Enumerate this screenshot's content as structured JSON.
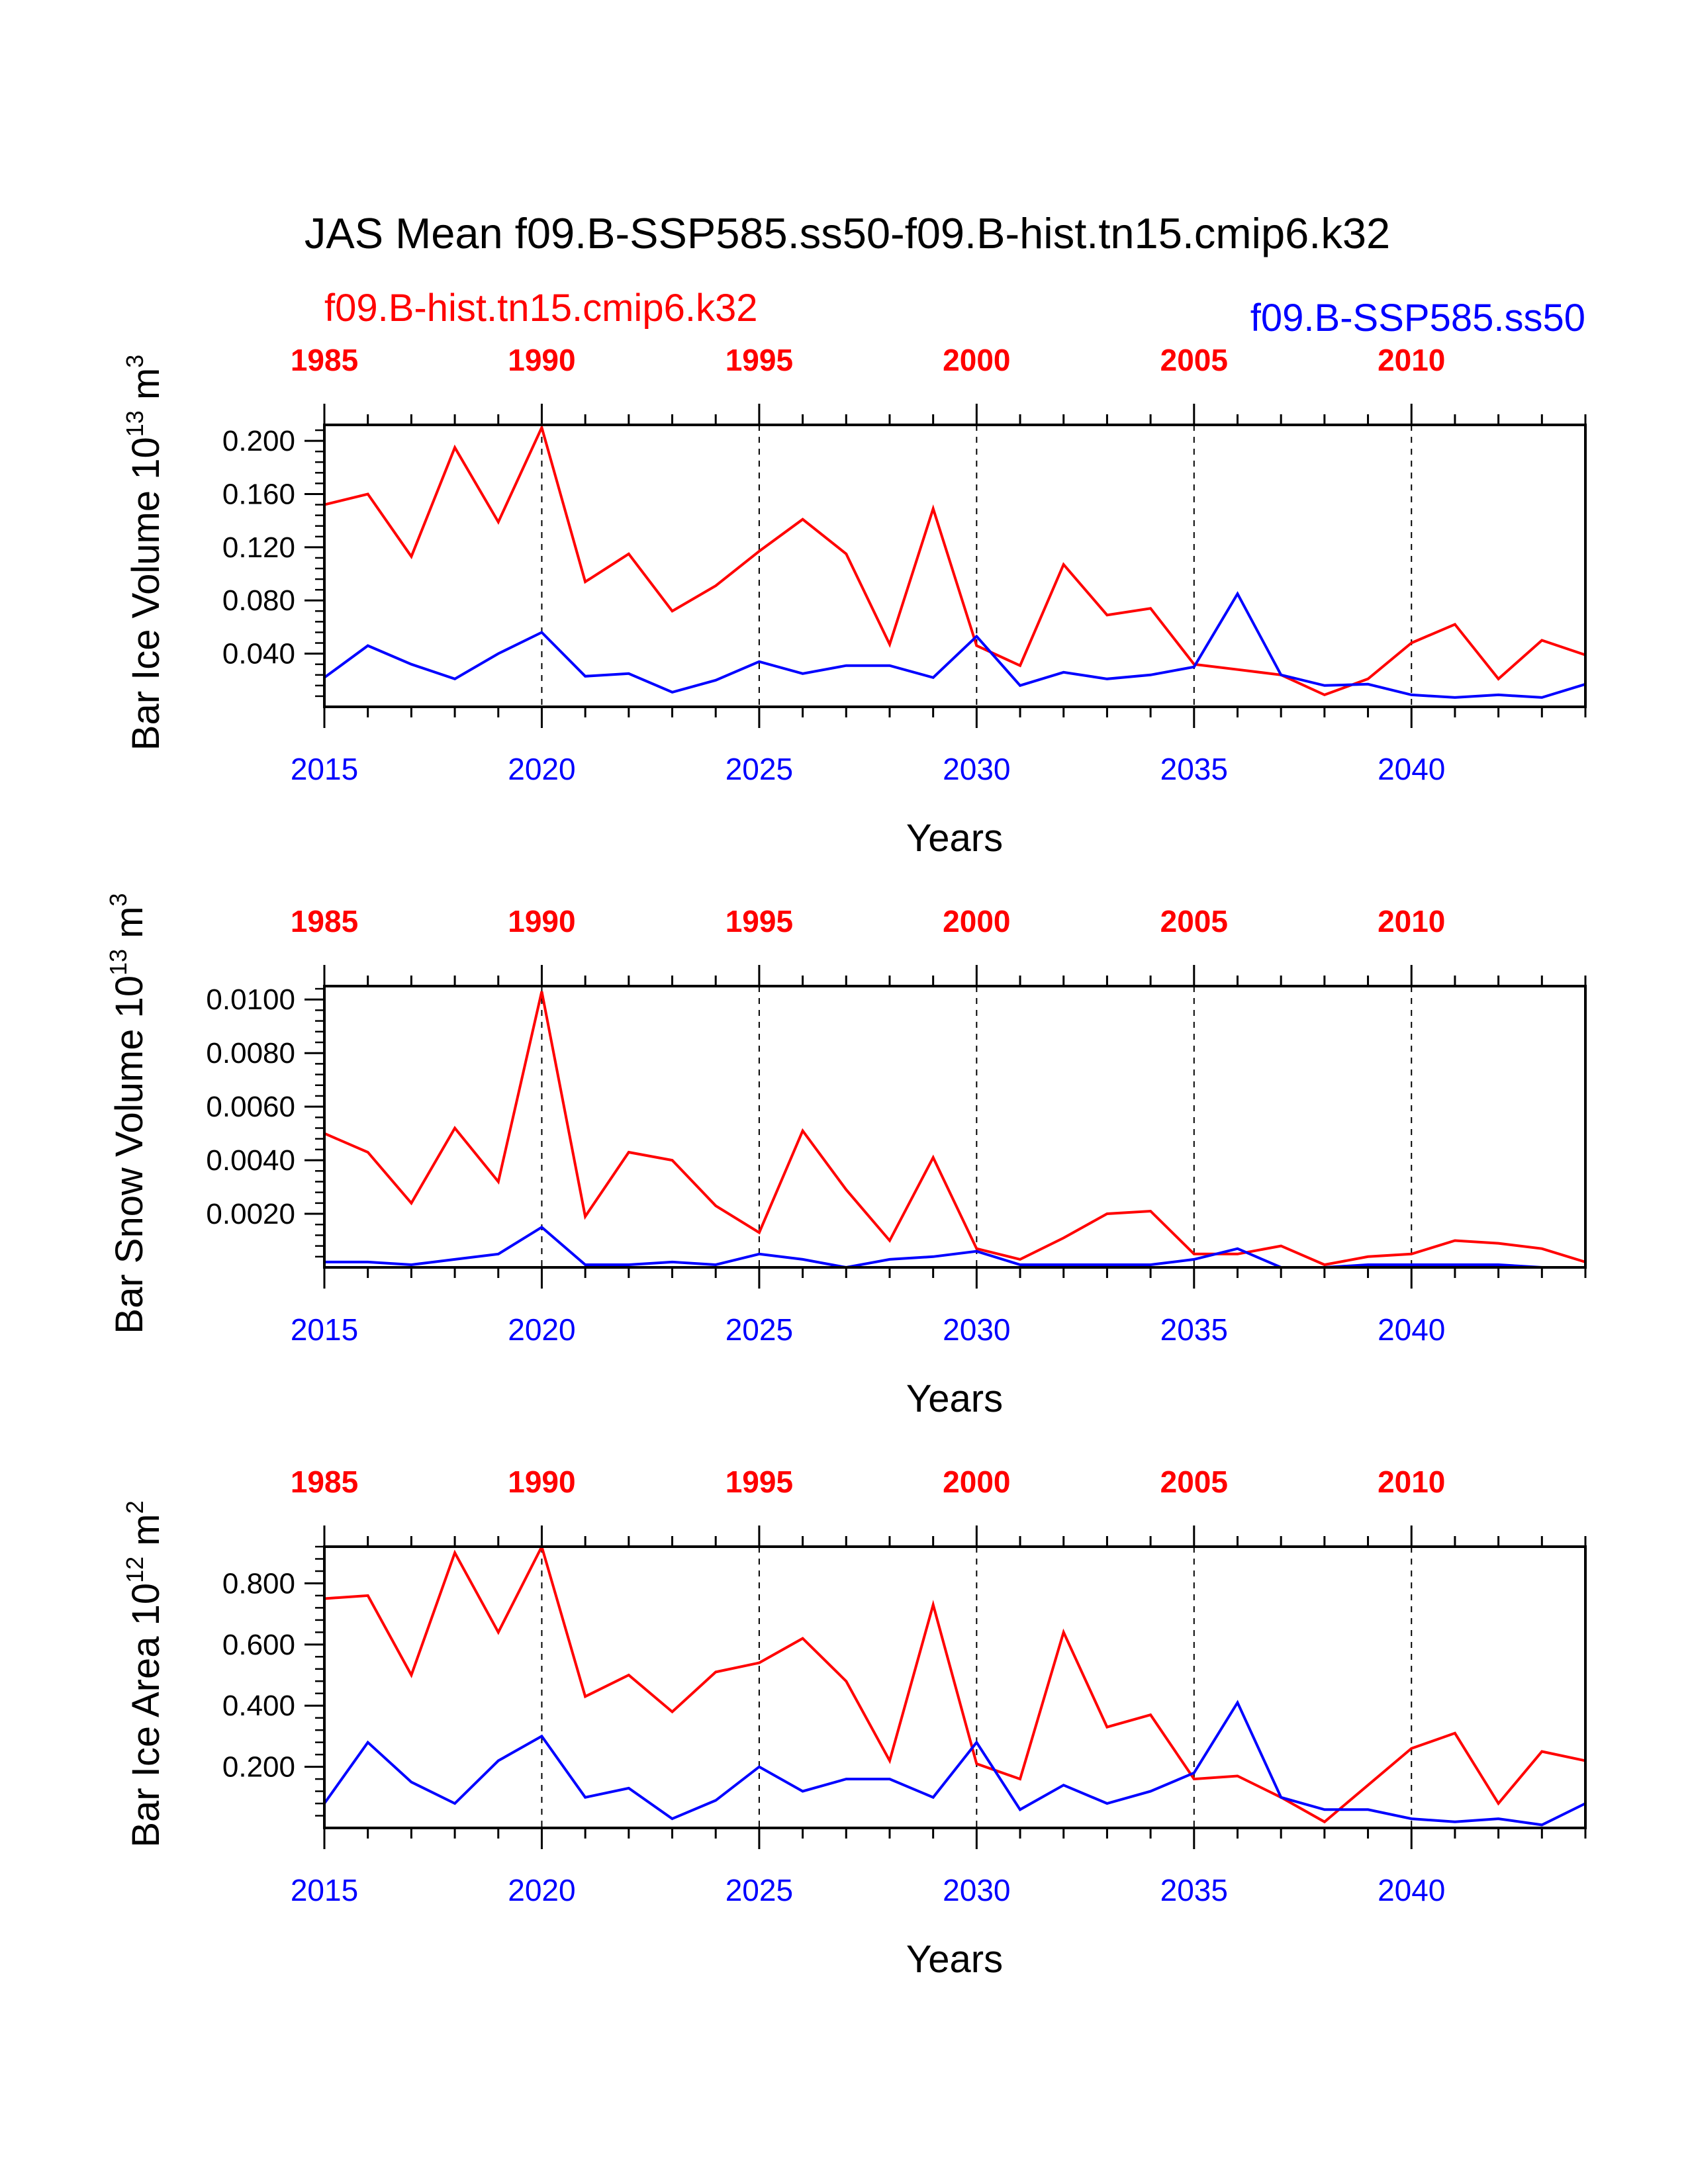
{
  "title": "JAS Mean f09.B-SSP585.ss50-f09.B-hist.tn15.cmip6.k32",
  "legend": {
    "red": "f09.B-hist.tn15.cmip6.k32",
    "blue": "f09.B-SSP585.ss50"
  },
  "colors": {
    "red": "#ff0000",
    "blue": "#0000ff",
    "axis": "#000000"
  },
  "chart_data": [
    {
      "type": "line",
      "ylabel": "Bar Ice Volume 10",
      "ylabel_exp": "13",
      "ylabel_unit": " m",
      "ylabel_unit_exp": "3",
      "xlabel": "Years",
      "ylim": [
        0.0,
        0.212
      ],
      "yticks": [
        0.04,
        0.08,
        0.12,
        0.16,
        0.2
      ],
      "ytick_labels": [
        "0.040",
        "0.080",
        "0.120",
        "0.160",
        "0.200"
      ],
      "yminor_step": 0.008,
      "bottom_x": [
        2015,
        2044
      ],
      "bottom_ticks": [
        "2015",
        "2020",
        "2025",
        "2030",
        "2035",
        "2040"
      ],
      "top_ticks": [
        "1985",
        "1990",
        "1995",
        "2000",
        "2005",
        "2010"
      ],
      "series": [
        {
          "name": "f09.B-hist.tn15.cmip6.k32",
          "color": "red",
          "x_start": 1985,
          "values": [
            0.152,
            0.16,
            0.113,
            0.195,
            0.139,
            0.21,
            0.094,
            0.115,
            0.072,
            0.091,
            0.117,
            0.141,
            0.115,
            0.047,
            0.149,
            0.046,
            0.031,
            0.107,
            0.069,
            0.074,
            0.032,
            0.028,
            0.024,
            0.009,
            0.021,
            0.048,
            0.062,
            0.021,
            0.05,
            0.039
          ]
        },
        {
          "name": "f09.B-SSP585.ss50",
          "color": "blue",
          "x_start": 2015,
          "values": [
            0.022,
            0.046,
            0.032,
            0.021,
            0.04,
            0.056,
            0.023,
            0.025,
            0.011,
            0.02,
            0.034,
            0.025,
            0.031,
            0.031,
            0.022,
            0.053,
            0.016,
            0.026,
            0.021,
            0.024,
            0.03,
            0.085,
            0.024,
            0.016,
            0.017,
            0.009,
            0.007,
            0.009,
            0.007,
            0.017
          ]
        }
      ]
    },
    {
      "type": "line",
      "ylabel": "Bar Snow Volume 10",
      "ylabel_exp": "13",
      "ylabel_unit": " m",
      "ylabel_unit_exp": "3",
      "xlabel": "Years",
      "ylim": [
        0.0,
        0.0105
      ],
      "yticks": [
        0.002,
        0.004,
        0.006,
        0.008,
        0.01
      ],
      "ytick_labels": [
        "0.0020",
        "0.0040",
        "0.0060",
        "0.0080",
        "0.0100"
      ],
      "yminor_step": 0.0004,
      "bottom_x": [
        2015,
        2044
      ],
      "bottom_ticks": [
        "2015",
        "2020",
        "2025",
        "2030",
        "2035",
        "2040"
      ],
      "top_ticks": [
        "1985",
        "1990",
        "1995",
        "2000",
        "2005",
        "2010"
      ],
      "series": [
        {
          "name": "f09.B-hist.tn15.cmip6.k32",
          "color": "red",
          "x_start": 1985,
          "values": [
            0.005,
            0.0043,
            0.0024,
            0.0052,
            0.0032,
            0.0103,
            0.0019,
            0.0043,
            0.004,
            0.0023,
            0.0013,
            0.0051,
            0.0029,
            0.001,
            0.0041,
            0.0007,
            0.0003,
            0.0011,
            0.002,
            0.0021,
            0.0005,
            0.0005,
            0.0008,
            0.0001,
            0.0004,
            0.0005,
            0.001,
            0.0009,
            0.0007,
            0.0002
          ]
        },
        {
          "name": "f09.B-SSP585.ss50",
          "color": "blue",
          "x_start": 2015,
          "values": [
            0.0002,
            0.0002,
            0.0001,
            0.0003,
            0.0005,
            0.0015,
            0.0001,
            0.0001,
            0.0002,
            0.0001,
            0.0005,
            0.0003,
            0.0,
            0.0003,
            0.0004,
            0.0006,
            0.0001,
            0.0001,
            0.0001,
            0.0001,
            0.0003,
            0.0007,
            0.0,
            0.0,
            0.0001,
            0.0001,
            0.0001,
            0.0001,
            0.0,
            0.0
          ]
        }
      ]
    },
    {
      "type": "line",
      "ylabel": "Bar Ice Area 10",
      "ylabel_exp": "12",
      "ylabel_unit": " m",
      "ylabel_unit_exp": "2",
      "xlabel": "Years",
      "ylim": [
        0.0,
        0.92
      ],
      "yticks": [
        0.2,
        0.4,
        0.6,
        0.8
      ],
      "ytick_labels": [
        "0.200",
        "0.400",
        "0.600",
        "0.800"
      ],
      "yminor_step": 0.04,
      "bottom_x": [
        2015,
        2044
      ],
      "bottom_ticks": [
        "2015",
        "2020",
        "2025",
        "2030",
        "2035",
        "2040"
      ],
      "top_ticks": [
        "1985",
        "1990",
        "1995",
        "2000",
        "2005",
        "2010"
      ],
      "series": [
        {
          "name": "f09.B-hist.tn15.cmip6.k32",
          "color": "red",
          "x_start": 1985,
          "values": [
            0.75,
            0.76,
            0.5,
            0.9,
            0.64,
            0.92,
            0.43,
            0.5,
            0.38,
            0.51,
            0.54,
            0.62,
            0.48,
            0.22,
            0.73,
            0.21,
            0.16,
            0.64,
            0.33,
            0.37,
            0.16,
            0.17,
            0.1,
            0.02,
            0.14,
            0.26,
            0.31,
            0.08,
            0.25,
            0.22
          ]
        },
        {
          "name": "f09.B-SSP585.ss50",
          "color": "blue",
          "x_start": 2015,
          "values": [
            0.08,
            0.28,
            0.15,
            0.08,
            0.22,
            0.3,
            0.1,
            0.13,
            0.03,
            0.09,
            0.2,
            0.12,
            0.16,
            0.16,
            0.1,
            0.28,
            0.06,
            0.14,
            0.08,
            0.12,
            0.18,
            0.41,
            0.1,
            0.06,
            0.06,
            0.03,
            0.02,
            0.03,
            0.01,
            0.08
          ]
        }
      ]
    }
  ]
}
